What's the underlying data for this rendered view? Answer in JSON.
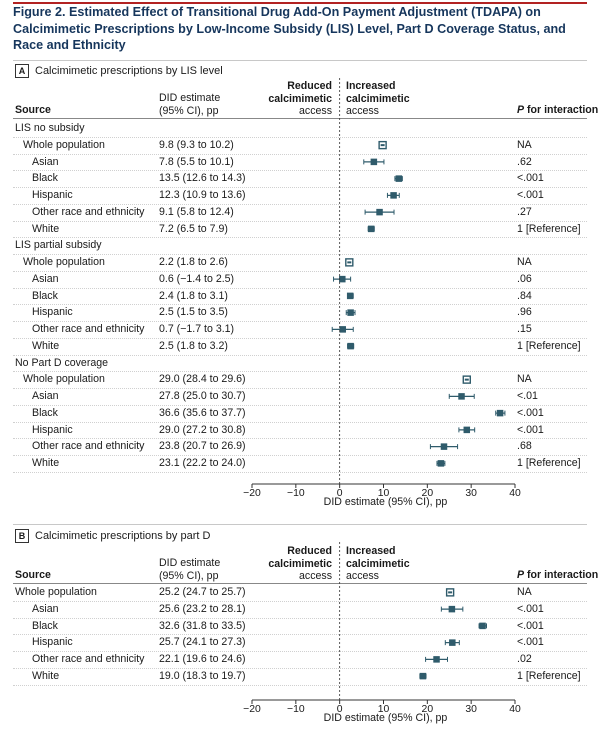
{
  "figure": {
    "title": "Figure 2. Estimated Effect of Transitional Drug Add-On Payment Adjustment (TDAPA) on Calcimimetic Prescriptions by Low-Income Subsidy (LIS) Level, Part D Coverage Status, and Race and Ethnicity"
  },
  "colors": {
    "accent": "#b22222",
    "marker": "#2f5b6b",
    "title": "#16365c"
  },
  "panel_a": {
    "letter": "A",
    "heading": "Calcimimetic prescriptions by LIS level",
    "headers": {
      "source": "Source",
      "did_line1": "DID estimate",
      "did_line2": "(95% CI), pp",
      "reduced_line1": "Reduced",
      "reduced_line2": "calcimimetic",
      "reduced_line3": "access",
      "increased_line1": "Increased",
      "increased_line2": "calcimimetic",
      "increased_line3": "access",
      "p_italic": "P",
      "p_rest": " for interaction"
    },
    "axis_title": "DID estimate (95% CI), pp",
    "ticks": [
      "−20",
      "−10",
      "0",
      "10",
      "20",
      "30",
      "40"
    ]
  },
  "panel_b": {
    "letter": "B",
    "heading": "Calcimimetic prescriptions by part D",
    "headers": {
      "source": "Source",
      "did_line1": "DID estimate",
      "did_line2": "(95% CI), pp",
      "reduced_line1": "Reduced",
      "reduced_line2": "calcimimetic",
      "reduced_line3": "access",
      "increased_line1": "Increased",
      "increased_line2": "calcimimetic",
      "increased_line3": "access",
      "p_italic": "P",
      "p_rest": " for interaction"
    },
    "axis_title": "DID estimate (95% CI), pp",
    "ticks": [
      "−20",
      "−10",
      "0",
      "10",
      "20",
      "30",
      "40"
    ]
  },
  "chart_data": [
    {
      "type": "forest",
      "panel": "A",
      "title": "Calcimimetic prescriptions by LIS level",
      "xlabel": "DID estimate (95% CI), pp",
      "xlim": [
        -20,
        40
      ],
      "xticks": [
        -20,
        -10,
        0,
        10,
        20,
        30,
        40
      ],
      "reference_line": 0,
      "rows": [
        {
          "kind": "group",
          "label": "LIS no subsidy"
        },
        {
          "kind": "whole",
          "label": "Whole population",
          "text": "9.8 (9.3 to 10.2)",
          "est": 9.8,
          "lo": 9.3,
          "hi": 10.2,
          "p": "NA"
        },
        {
          "kind": "sub",
          "label": "Asian",
          "text": "7.8 (5.5 to 10.1)",
          "est": 7.8,
          "lo": 5.5,
          "hi": 10.1,
          "p": ".62"
        },
        {
          "kind": "sub",
          "label": "Black",
          "text": "13.5 (12.6 to 14.3)",
          "est": 13.5,
          "lo": 12.6,
          "hi": 14.3,
          "p": "<.001"
        },
        {
          "kind": "sub",
          "label": "Hispanic",
          "text": "12.3 (10.9 to 13.6)",
          "est": 12.3,
          "lo": 10.9,
          "hi": 13.6,
          "p": "<.001"
        },
        {
          "kind": "sub",
          "label": "Other race and ethnicity",
          "text": "9.1 (5.8 to 12.4)",
          "est": 9.1,
          "lo": 5.8,
          "hi": 12.4,
          "p": ".27"
        },
        {
          "kind": "sub",
          "label": "White",
          "text": "7.2 (6.5 to 7.9)",
          "est": 7.2,
          "lo": 6.5,
          "hi": 7.9,
          "p": "1 [Reference]"
        },
        {
          "kind": "group",
          "label": "LIS partial subsidy"
        },
        {
          "kind": "whole",
          "label": "Whole population",
          "text": "2.2 (1.8 to 2.6)",
          "est": 2.2,
          "lo": 1.8,
          "hi": 2.6,
          "p": "NA"
        },
        {
          "kind": "sub",
          "label": "Asian",
          "text": "0.6 (−1.4 to 2.5)",
          "est": 0.6,
          "lo": -1.4,
          "hi": 2.5,
          "p": ".06"
        },
        {
          "kind": "sub",
          "label": "Black",
          "text": "2.4 (1.8 to 3.1)",
          "est": 2.4,
          "lo": 1.8,
          "hi": 3.1,
          "p": ".84"
        },
        {
          "kind": "sub",
          "label": "Hispanic",
          "text": "2.5 (1.5 to 3.5)",
          "est": 2.5,
          "lo": 1.5,
          "hi": 3.5,
          "p": ".96"
        },
        {
          "kind": "sub",
          "label": "Other race and ethnicity",
          "text": "0.7 (−1.7 to 3.1)",
          "est": 0.7,
          "lo": -1.7,
          "hi": 3.1,
          "p": ".15"
        },
        {
          "kind": "sub",
          "label": "White",
          "text": "2.5 (1.8 to 3.2)",
          "est": 2.5,
          "lo": 1.8,
          "hi": 3.2,
          "p": "1 [Reference]"
        },
        {
          "kind": "group",
          "label": "No Part D coverage"
        },
        {
          "kind": "whole",
          "label": "Whole population",
          "text": "29.0 (28.4 to 29.6)",
          "est": 29.0,
          "lo": 28.4,
          "hi": 29.6,
          "p": "NA"
        },
        {
          "kind": "sub",
          "label": "Asian",
          "text": "27.8 (25.0 to 30.7)",
          "est": 27.8,
          "lo": 25.0,
          "hi": 30.7,
          "p": "<.01"
        },
        {
          "kind": "sub",
          "label": "Black",
          "text": "36.6 (35.6 to 37.7)",
          "est": 36.6,
          "lo": 35.6,
          "hi": 37.7,
          "p": "<.001"
        },
        {
          "kind": "sub",
          "label": "Hispanic",
          "text": "29.0 (27.2 to 30.8)",
          "est": 29.0,
          "lo": 27.2,
          "hi": 30.8,
          "p": "<.001"
        },
        {
          "kind": "sub",
          "label": "Other race and ethnicity",
          "text": "23.8 (20.7 to 26.9)",
          "est": 23.8,
          "lo": 20.7,
          "hi": 26.9,
          "p": ".68"
        },
        {
          "kind": "sub",
          "label": "White",
          "text": "23.1 (22.2 to 24.0)",
          "est": 23.1,
          "lo": 22.2,
          "hi": 24.0,
          "p": "1 [Reference]"
        }
      ]
    },
    {
      "type": "forest",
      "panel": "B",
      "title": "Calcimimetic prescriptions by part D",
      "xlabel": "DID estimate (95% CI), pp",
      "xlim": [
        -20,
        40
      ],
      "xticks": [
        -20,
        -10,
        0,
        10,
        20,
        30,
        40
      ],
      "reference_line": 0,
      "rows": [
        {
          "kind": "first",
          "label": "Whole population",
          "text": "25.2 (24.7 to 25.7)",
          "est": 25.2,
          "lo": 24.7,
          "hi": 25.7,
          "p": "NA"
        },
        {
          "kind": "sub",
          "label": "Asian",
          "text": "25.6 (23.2 to 28.1)",
          "est": 25.6,
          "lo": 23.2,
          "hi": 28.1,
          "p": "<.001"
        },
        {
          "kind": "sub",
          "label": "Black",
          "text": "32.6 (31.8 to 33.5)",
          "est": 32.6,
          "lo": 31.8,
          "hi": 33.5,
          "p": "<.001"
        },
        {
          "kind": "sub",
          "label": "Hispanic",
          "text": "25.7 (24.1 to 27.3)",
          "est": 25.7,
          "lo": 24.1,
          "hi": 27.3,
          "p": "<.001"
        },
        {
          "kind": "sub",
          "label": "Other race and ethnicity",
          "text": "22.1 (19.6 to 24.6)",
          "est": 22.1,
          "lo": 19.6,
          "hi": 24.6,
          "p": ".02"
        },
        {
          "kind": "sub",
          "label": "White",
          "text": "19.0 (18.3 to 19.7)",
          "est": 19.0,
          "lo": 18.3,
          "hi": 19.7,
          "p": "1 [Reference]"
        }
      ]
    }
  ]
}
